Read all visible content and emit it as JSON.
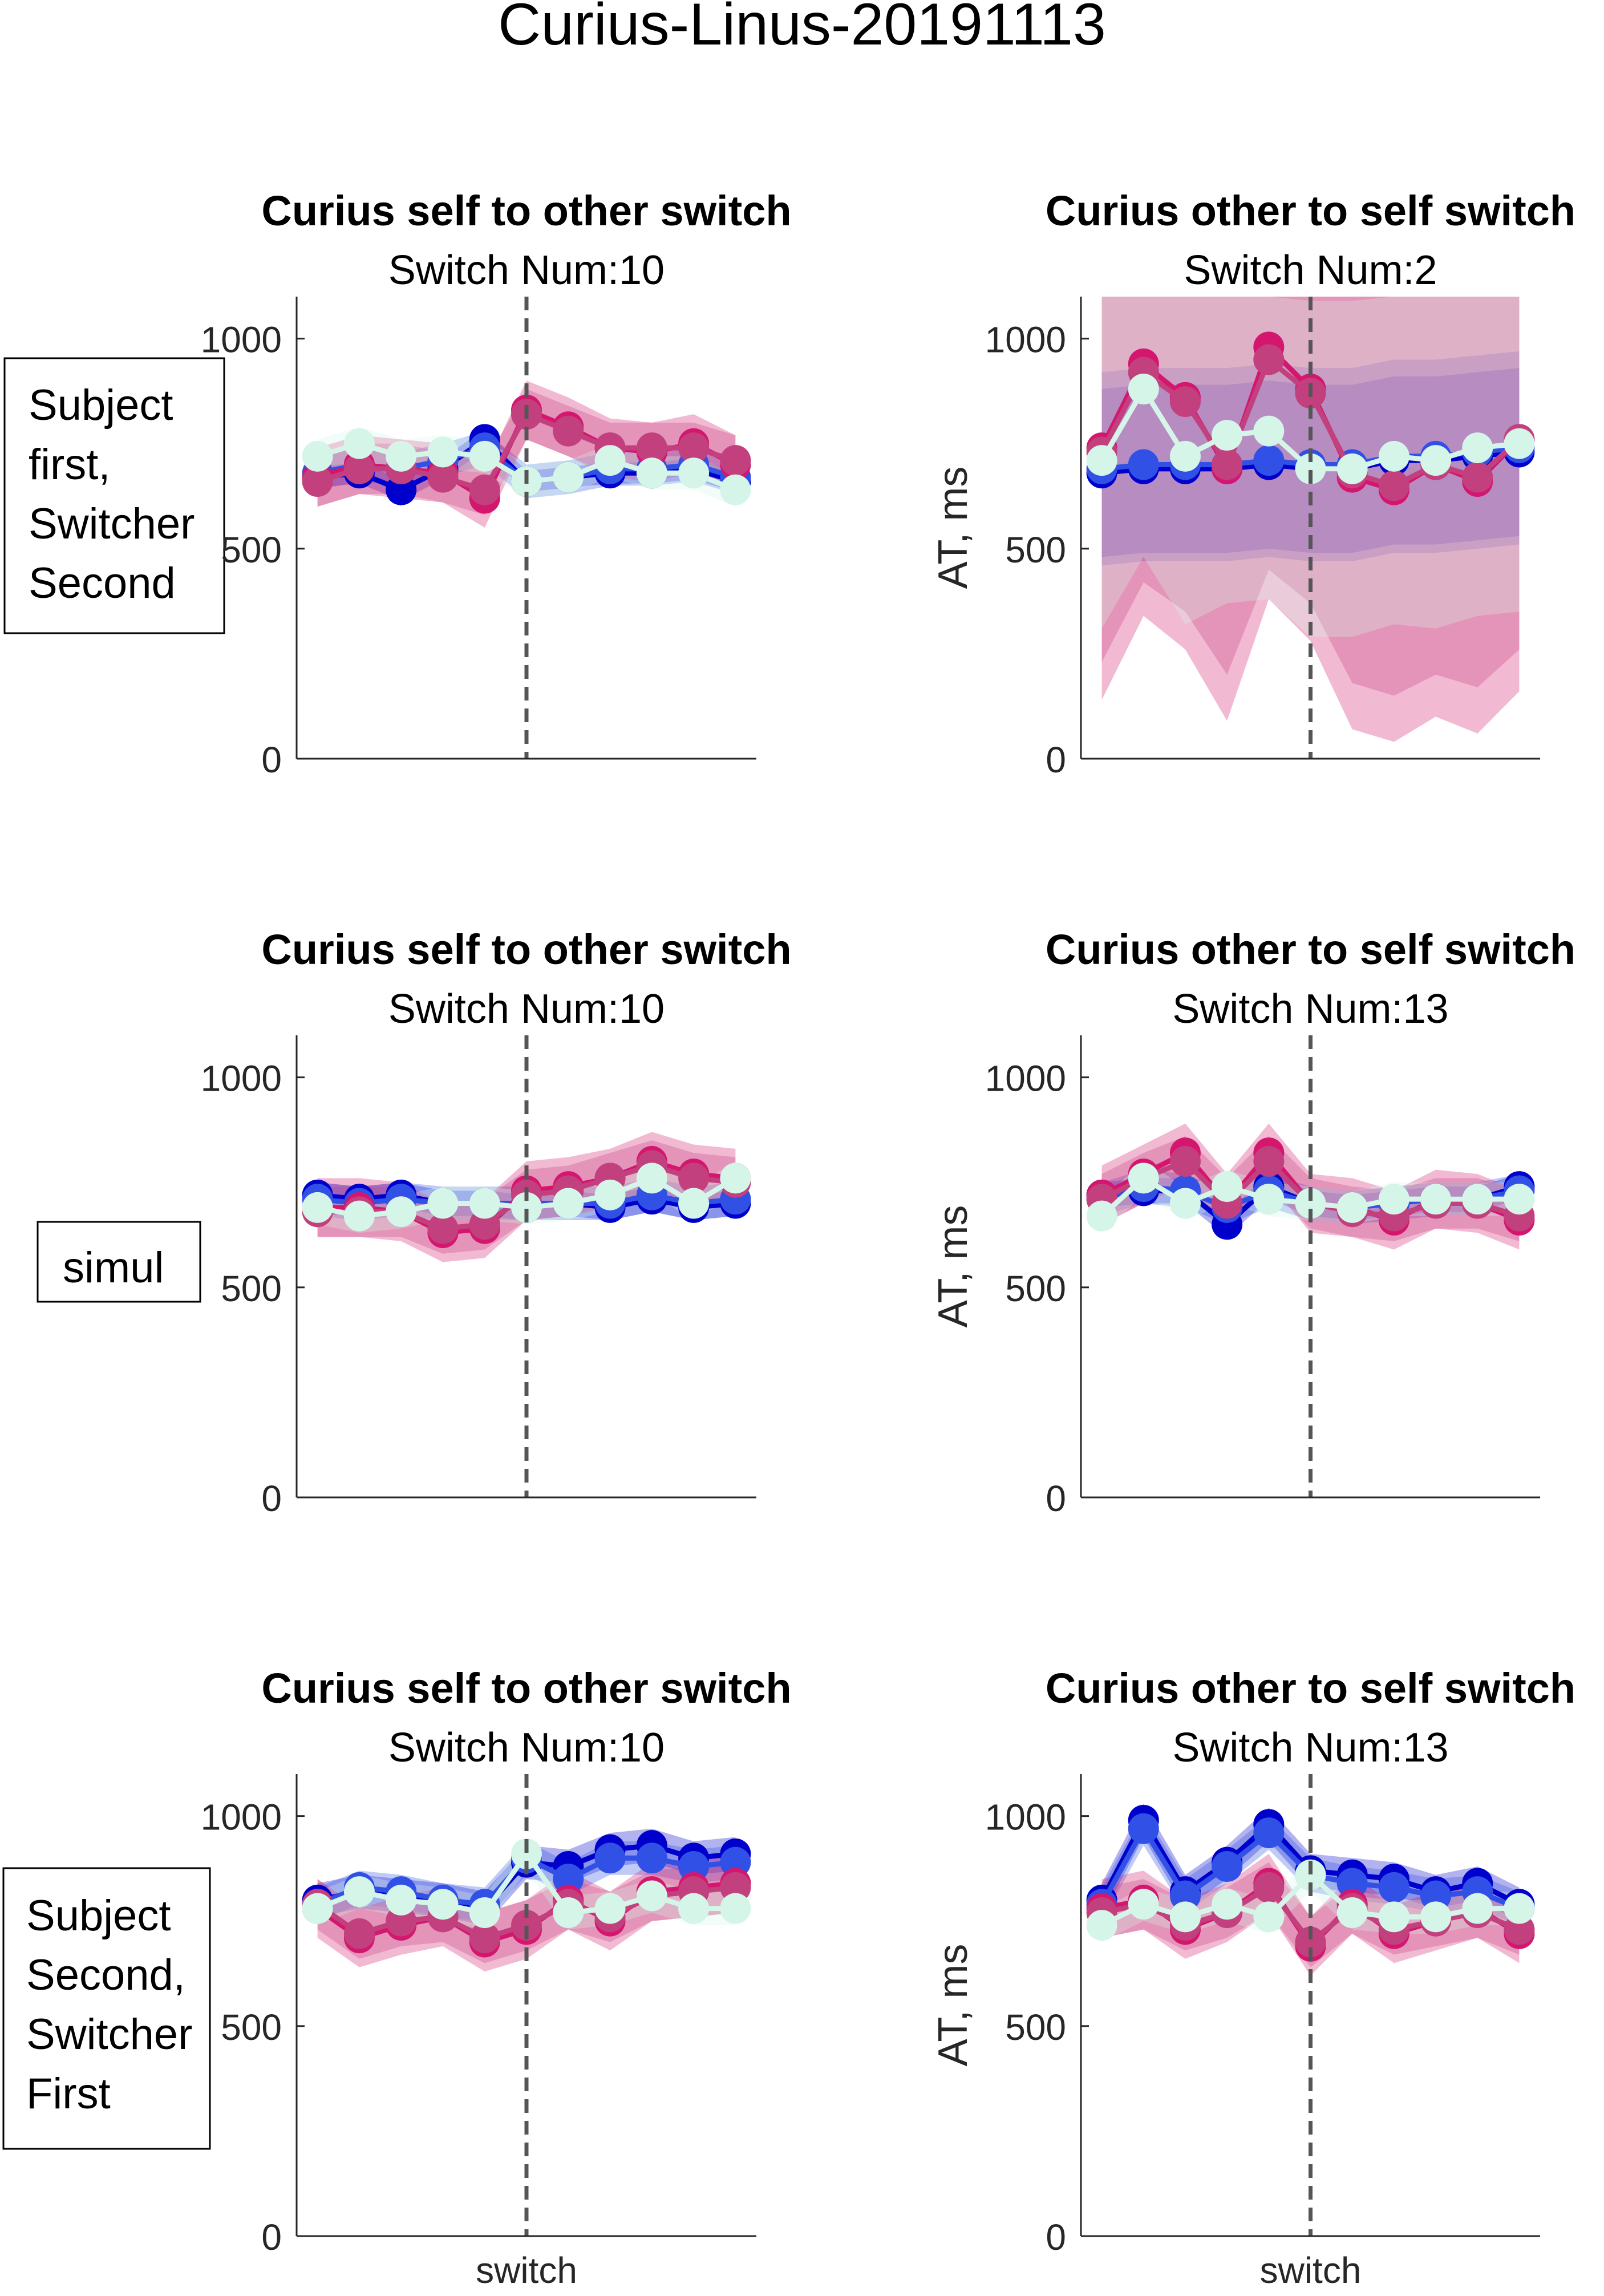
{
  "figure": {
    "title": "Curius-Linus-20191113"
  },
  "row_labels": [
    "Subject\nfirst,\nSwitcher\nSecond",
    "simul",
    "Subject\nSecond,\nSwitcher\nFirst"
  ],
  "colors": {
    "dark_blue": "#0000cc",
    "blue": "#3050e6",
    "magenta": "#d4166e",
    "mauve": "#c2407e",
    "pale_green": "#d4f5e8",
    "dashed_line": "#555555",
    "axis": "#262626"
  },
  "chart_data": [
    {
      "type": "line",
      "row": 0,
      "col": 0,
      "title": "Curius self to other switch",
      "subtitle": "Switch Num:10",
      "ylabel": "",
      "xlabel": "",
      "xtick_label": "",
      "ylim": [
        0,
        1100
      ],
      "yticks": [
        0,
        500,
        1000
      ],
      "x": [
        1,
        2,
        3,
        4,
        5,
        6,
        7,
        8,
        9,
        10,
        11
      ],
      "switch_x": 6,
      "series": [
        {
          "values": [
            670,
            680,
            640,
            690,
            760,
            660,
            670,
            680,
            680,
            690,
            660
          ],
          "color": "#0000cc",
          "band": 25
        },
        {
          "values": [
            680,
            700,
            690,
            710,
            740,
            660,
            670,
            690,
            690,
            700,
            670
          ],
          "color": "#3050e6",
          "band": 40
        },
        {
          "values": [
            670,
            700,
            690,
            680,
            620,
            830,
            790,
            740,
            730,
            750,
            700
          ],
          "color": "#d4166e",
          "band": 70
        },
        {
          "values": [
            660,
            690,
            690,
            670,
            640,
            820,
            780,
            740,
            740,
            740,
            710
          ],
          "color": "#c2407e",
          "band": 60
        },
        {
          "values": [
            720,
            750,
            720,
            730,
            720,
            660,
            670,
            710,
            680,
            680,
            640
          ],
          "color": "#d4f5e8",
          "band": 40
        }
      ]
    },
    {
      "type": "line",
      "row": 0,
      "col": 1,
      "title": "Curius other to self switch",
      "subtitle": "Switch Num:2",
      "ylabel": "AT, ms",
      "xlabel": "",
      "xtick_label": "",
      "ylim": [
        0,
        1100
      ],
      "yticks": [
        0,
        500,
        1000
      ],
      "x": [
        1,
        2,
        3,
        4,
        5,
        6,
        7,
        8,
        9,
        10,
        11
      ],
      "switch_x": 6,
      "series": [
        {
          "values": [
            680,
            690,
            690,
            690,
            700,
            690,
            690,
            710,
            710,
            720,
            730
          ],
          "color": "#0000cc",
          "band": 200
        },
        {
          "values": [
            690,
            700,
            700,
            700,
            710,
            700,
            700,
            720,
            720,
            730,
            740
          ],
          "color": "#3050e6",
          "band": 230
        },
        {
          "values": [
            740,
            940,
            860,
            690,
            980,
            880,
            670,
            640,
            700,
            660,
            760
          ],
          "color": "#d4166e",
          "band": 600
        },
        {
          "values": [
            730,
            920,
            850,
            700,
            950,
            870,
            680,
            650,
            700,
            670,
            760
          ],
          "color": "#c2407e",
          "band": 500
        },
        {
          "values": [
            710,
            880,
            720,
            770,
            780,
            690,
            690,
            720,
            710,
            740,
            750
          ],
          "color": "#d4f5e8",
          "band": 400
        }
      ]
    },
    {
      "type": "line",
      "row": 1,
      "col": 0,
      "title": "Curius self to other switch",
      "subtitle": "Switch Num:10",
      "ylabel": "",
      "xlabel": "",
      "xtick_label": "",
      "ylim": [
        0,
        1100
      ],
      "yticks": [
        0,
        500,
        1000
      ],
      "x": [
        1,
        2,
        3,
        4,
        5,
        6,
        7,
        8,
        9,
        10,
        11
      ],
      "switch_x": 6,
      "series": [
        {
          "values": [
            720,
            710,
            720,
            700,
            700,
            690,
            700,
            690,
            710,
            690,
            700
          ],
          "color": "#0000cc",
          "band": 30
        },
        {
          "values": [
            710,
            700,
            710,
            700,
            700,
            700,
            700,
            700,
            720,
            700,
            710
          ],
          "color": "#3050e6",
          "band": 40
        },
        {
          "values": [
            690,
            690,
            680,
            630,
            640,
            730,
            740,
            760,
            800,
            770,
            760
          ],
          "color": "#d4166e",
          "band": 70
        },
        {
          "values": [
            680,
            680,
            680,
            640,
            650,
            720,
            730,
            760,
            790,
            760,
            750
          ],
          "color": "#c2407e",
          "band": 60
        },
        {
          "values": [
            690,
            670,
            680,
            700,
            700,
            690,
            700,
            720,
            760,
            700,
            760
          ],
          "color": "#d4f5e8",
          "band": 40
        }
      ]
    },
    {
      "type": "line",
      "row": 1,
      "col": 1,
      "title": "Curius other to self switch",
      "subtitle": "Switch Num:13",
      "ylabel": "AT, ms",
      "xlabel": "",
      "xtick_label": "",
      "ylim": [
        0,
        1100
      ],
      "yticks": [
        0,
        500,
        1000
      ],
      "x": [
        1,
        2,
        3,
        4,
        5,
        6,
        7,
        8,
        9,
        10,
        11
      ],
      "switch_x": 6,
      "series": [
        {
          "values": [
            720,
            730,
            730,
            650,
            740,
            700,
            690,
            700,
            710,
            710,
            740
          ],
          "color": "#0000cc",
          "band": 30
        },
        {
          "values": [
            710,
            740,
            730,
            690,
            730,
            700,
            690,
            700,
            710,
            710,
            730
          ],
          "color": "#3050e6",
          "band": 40
        },
        {
          "values": [
            720,
            770,
            820,
            700,
            820,
            700,
            690,
            660,
            710,
            700,
            660
          ],
          "color": "#d4166e",
          "band": 70
        },
        {
          "values": [
            710,
            760,
            800,
            700,
            800,
            700,
            680,
            670,
            700,
            700,
            670
          ],
          "color": "#c2407e",
          "band": 60
        },
        {
          "values": [
            670,
            760,
            700,
            740,
            710,
            700,
            690,
            710,
            710,
            710,
            710
          ],
          "color": "#d4f5e8",
          "band": 40
        }
      ]
    },
    {
      "type": "line",
      "row": 2,
      "col": 0,
      "title": "Curius self to other switch",
      "subtitle": "Switch Num:10",
      "ylabel": "",
      "xlabel": "switch",
      "xtick_label": "switch",
      "ylim": [
        0,
        1100
      ],
      "yticks": [
        0,
        500,
        1000
      ],
      "x": [
        1,
        2,
        3,
        4,
        5,
        6,
        7,
        8,
        9,
        10,
        11
      ],
      "switch_x": 6,
      "series": [
        {
          "values": [
            800,
            820,
            810,
            800,
            780,
            890,
            880,
            920,
            930,
            900,
            910
          ],
          "color": "#0000cc",
          "band": 40
        },
        {
          "values": [
            790,
            830,
            820,
            800,
            790,
            900,
            850,
            900,
            900,
            880,
            890
          ],
          "color": "#3050e6",
          "band": 40
        },
        {
          "values": [
            780,
            710,
            740,
            760,
            700,
            730,
            800,
            750,
            820,
            830,
            840
          ],
          "color": "#d4166e",
          "band": 70
        },
        {
          "values": [
            790,
            720,
            750,
            760,
            710,
            740,
            790,
            760,
            810,
            820,
            830
          ],
          "color": "#c2407e",
          "band": 60
        },
        {
          "values": [
            780,
            820,
            800,
            790,
            770,
            910,
            770,
            780,
            810,
            780,
            780
          ],
          "color": "#d4f5e8",
          "band": 40
        }
      ]
    },
    {
      "type": "line",
      "row": 2,
      "col": 1,
      "title": "Curius other to self switch",
      "subtitle": "Switch Num:13",
      "ylabel": "AT, ms",
      "xlabel": "switch",
      "xtick_label": "switch",
      "ylim": [
        0,
        1100
      ],
      "yticks": [
        0,
        500,
        1000
      ],
      "x": [
        1,
        2,
        3,
        4,
        5,
        6,
        7,
        8,
        9,
        10,
        11
      ],
      "switch_x": 6,
      "series": [
        {
          "values": [
            800,
            990,
            820,
            890,
            980,
            870,
            860,
            850,
            820,
            840,
            790
          ],
          "color": "#0000cc",
          "band": 40
        },
        {
          "values": [
            790,
            970,
            810,
            880,
            960,
            860,
            840,
            830,
            810,
            820,
            780
          ],
          "color": "#3050e6",
          "band": 40
        },
        {
          "values": [
            780,
            800,
            730,
            770,
            840,
            690,
            790,
            720,
            750,
            780,
            720
          ],
          "color": "#d4166e",
          "band": 70
        },
        {
          "values": [
            770,
            790,
            740,
            770,
            830,
            700,
            780,
            730,
            750,
            770,
            730
          ],
          "color": "#c2407e",
          "band": 60
        },
        {
          "values": [
            740,
            790,
            760,
            790,
            760,
            860,
            770,
            760,
            760,
            780,
            780
          ],
          "color": "#d4f5e8",
          "band": 40
        }
      ]
    }
  ]
}
